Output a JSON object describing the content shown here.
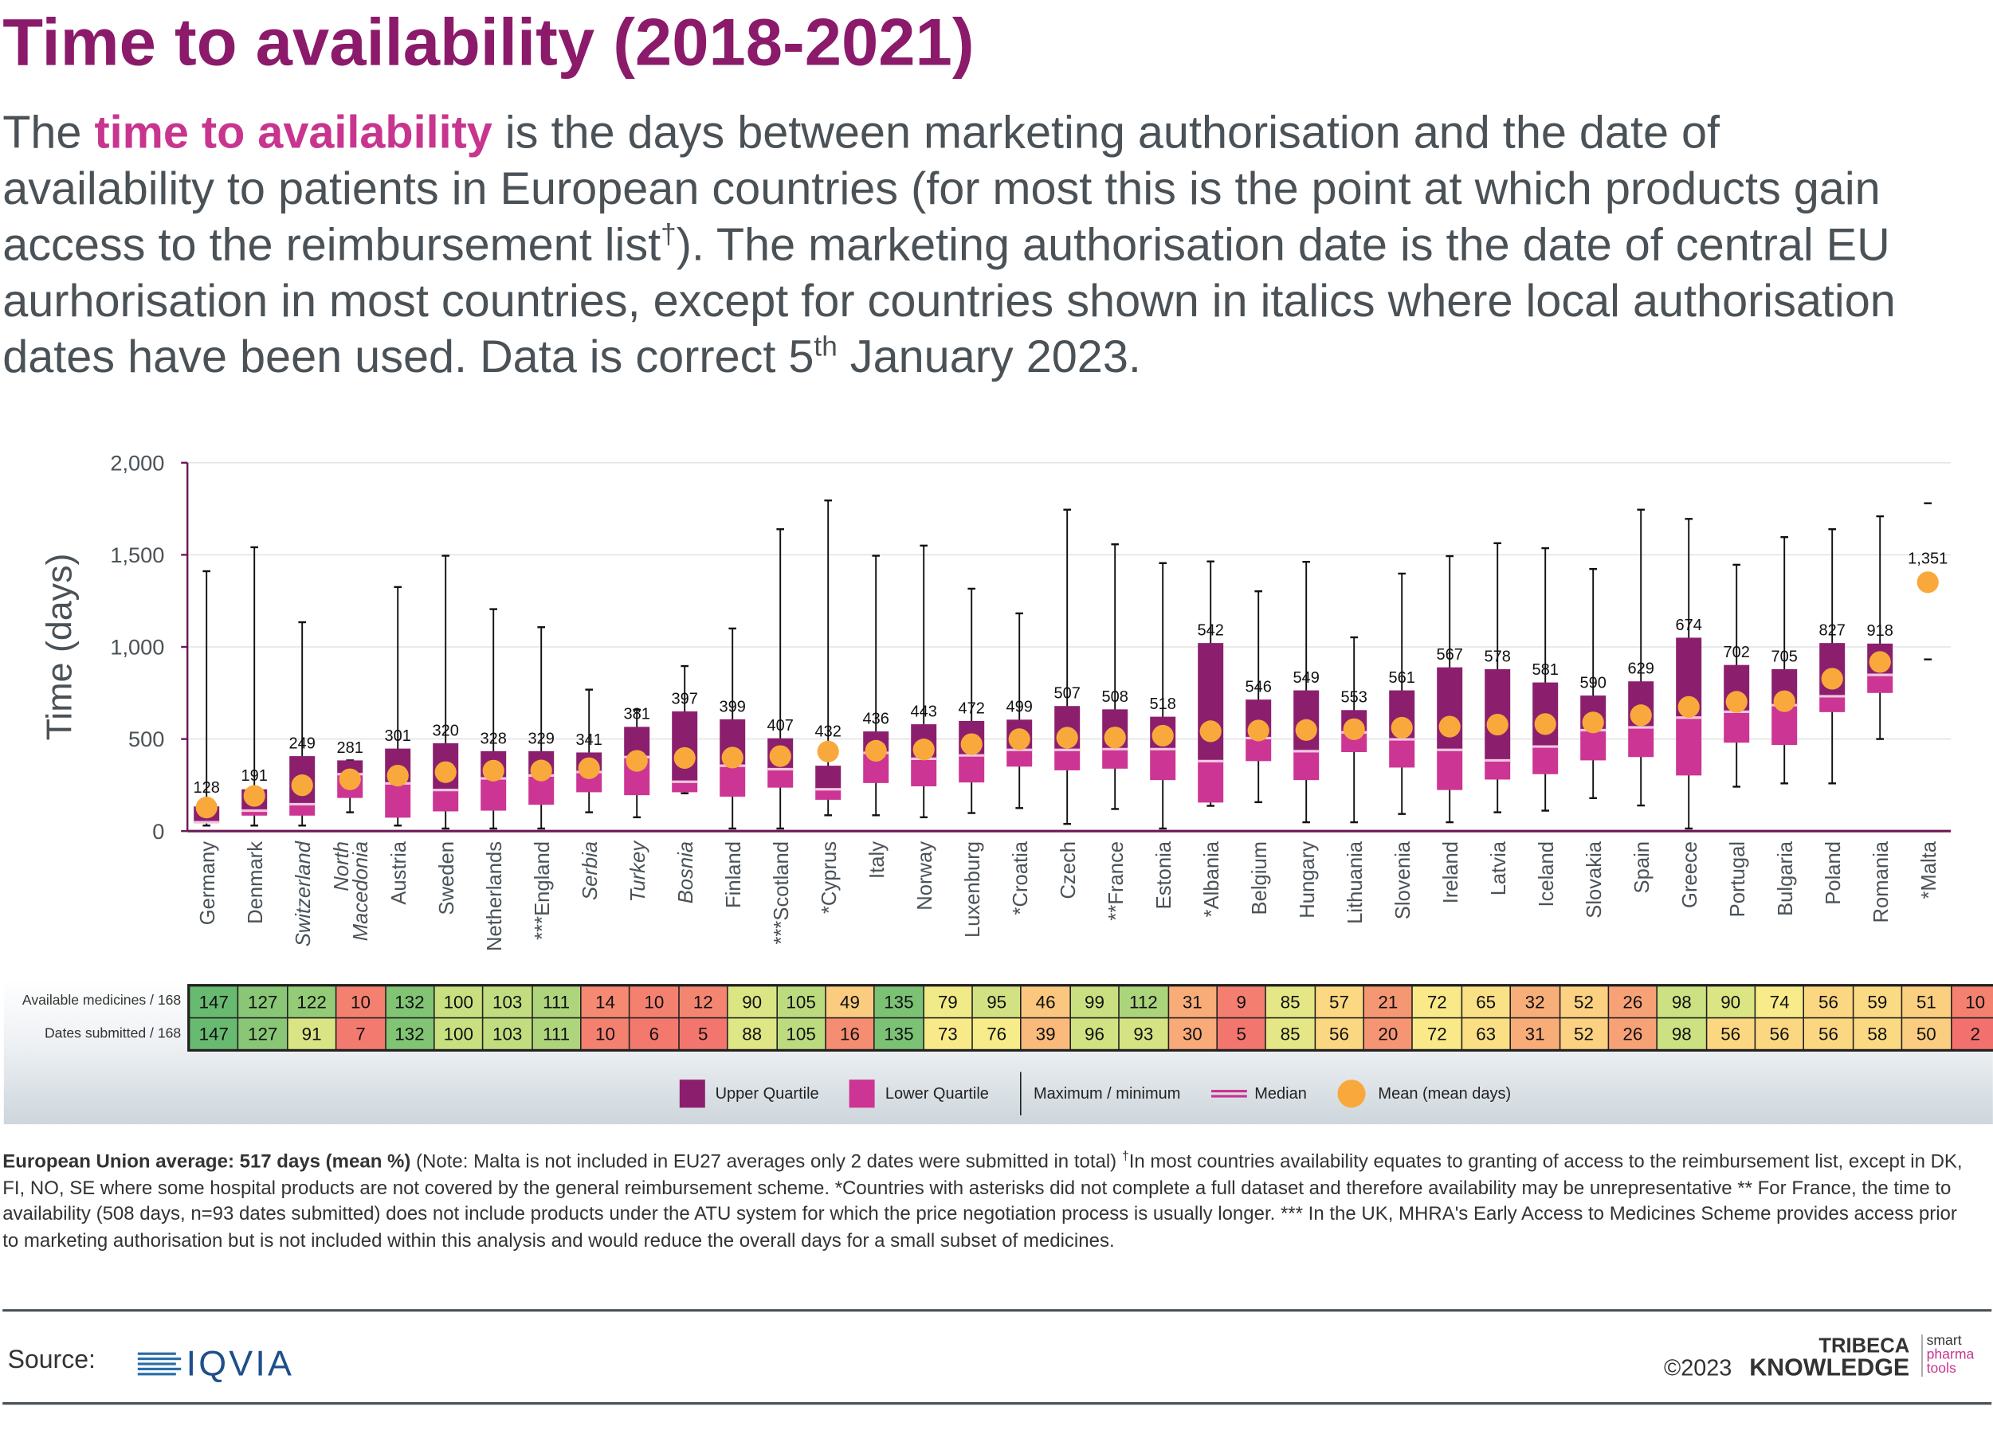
{
  "title": "Time to availability (2018-2021)",
  "intro": {
    "part1": "The ",
    "highlight": "time to availability",
    "part2": " is the days between marketing authorisation and the date of availability to patients in European countries (for most this is the point at which products gain access to the reimbursement list",
    "dagger": "†",
    "part3": "). The marketing authorisation date is the date of central EU aurhorisation in most countries, except for countries shown in italics where local authorisation dates have been used. Data is correct 5",
    "sup_th": "th",
    "part4": " January 2023."
  },
  "chart_data": {
    "type": "boxplot",
    "ylabel": "Time (days)",
    "ylim": [
      0,
      2000
    ],
    "yticks": [
      0,
      500,
      1000,
      1500,
      2000
    ],
    "ytick_labels": [
      "0",
      "500",
      "1,000",
      "1,500",
      "2,000"
    ],
    "grid": true,
    "colors": {
      "upper_quartile": "#8b1f6e",
      "lower_quartile": "#cc3593",
      "median": "#f3c6e0",
      "mean": "#f9a93b",
      "whisker": "#111111",
      "axis": "#6b1a55"
    },
    "countries": [
      {
        "name": "Germany",
        "italic": false,
        "mean": 128,
        "mean_label": "128",
        "min": 30,
        "q1": 45,
        "median": 48,
        "q3": 134,
        "max": 1411
      },
      {
        "name": "Denmark",
        "italic": false,
        "mean": 191,
        "mean_label": "191",
        "min": 30,
        "q1": 84,
        "median": 111,
        "q3": 227,
        "max": 1541
      },
      {
        "name": "Switzerland",
        "italic": true,
        "mean": 249,
        "mean_label": "249",
        "min": 30,
        "q1": 84,
        "median": 146,
        "q3": 407,
        "max": 1134
      },
      {
        "name": "North\nMacedonia",
        "italic": true,
        "mean": 281,
        "mean_label": "281",
        "min": 102,
        "q1": 180,
        "median": 309,
        "q3": 384,
        "max": 384
      },
      {
        "name": "Austria",
        "italic": false,
        "mean": 301,
        "mean_label": "301",
        "min": 30,
        "q1": 73,
        "median": 259,
        "q3": 448,
        "max": 1325
      },
      {
        "name": "Sweden",
        "italic": false,
        "mean": 320,
        "mean_label": "320",
        "min": 14,
        "q1": 107,
        "median": 223,
        "q3": 477,
        "max": 1495
      },
      {
        "name": "Netherlands",
        "italic": false,
        "mean": 328,
        "mean_label": "328",
        "min": 14,
        "q1": 111,
        "median": 286,
        "q3": 434,
        "max": 1205
      },
      {
        "name": "***England",
        "italic": false,
        "mean": 329,
        "mean_label": "329",
        "min": 14,
        "q1": 143,
        "median": 302,
        "q3": 434,
        "max": 1107
      },
      {
        "name": "Serbia",
        "italic": true,
        "mean": 341,
        "mean_label": "341",
        "min": 102,
        "q1": 211,
        "median": 321,
        "q3": 427,
        "max": 768
      },
      {
        "name": "Turkey",
        "italic": true,
        "mean": 381,
        "mean_label": "381",
        "min": 75,
        "q1": 195,
        "median": 402,
        "q3": 566,
        "max": 659
      },
      {
        "name": "Bosnia",
        "italic": true,
        "mean": 397,
        "mean_label": "397",
        "min": 205,
        "q1": 211,
        "median": 268,
        "q3": 650,
        "max": 896
      },
      {
        "name": "Finland",
        "italic": false,
        "mean": 399,
        "mean_label": "399",
        "min": 14,
        "q1": 187,
        "median": 355,
        "q3": 607,
        "max": 1100
      },
      {
        "name": "***Scotland",
        "italic": false,
        "mean": 407,
        "mean_label": "407",
        "min": 14,
        "q1": 236,
        "median": 336,
        "q3": 504,
        "max": 1639
      },
      {
        "name": "*Cyprus",
        "italic": false,
        "mean": 432,
        "mean_label": "432",
        "min": 86,
        "q1": 170,
        "median": 227,
        "q3": 355,
        "max": 1795
      },
      {
        "name": "Italy",
        "italic": false,
        "mean": 436,
        "mean_label": "436",
        "min": 86,
        "q1": 261,
        "median": 425,
        "q3": 541,
        "max": 1495
      },
      {
        "name": "Norway",
        "italic": false,
        "mean": 443,
        "mean_label": "443",
        "min": 75,
        "q1": 243,
        "median": 393,
        "q3": 580,
        "max": 1550
      },
      {
        "name": "Luxenburg",
        "italic": false,
        "mean": 472,
        "mean_label": "472",
        "min": 98,
        "q1": 264,
        "median": 411,
        "q3": 598,
        "max": 1316
      },
      {
        "name": "*Croatia",
        "italic": false,
        "mean": 499,
        "mean_label": "499",
        "min": 125,
        "q1": 350,
        "median": 441,
        "q3": 605,
        "max": 1182
      },
      {
        "name": "Czech",
        "italic": false,
        "mean": 507,
        "mean_label": "507",
        "min": 39,
        "q1": 330,
        "median": 441,
        "q3": 679,
        "max": 1745
      },
      {
        "name": "**France",
        "italic": false,
        "mean": 508,
        "mean_label": "508",
        "min": 120,
        "q1": 339,
        "median": 445,
        "q3": 661,
        "max": 1557
      },
      {
        "name": "Estonia",
        "italic": false,
        "mean": 518,
        "mean_label": "518",
        "min": 14,
        "q1": 277,
        "median": 445,
        "q3": 621,
        "max": 1455
      },
      {
        "name": "*Albania",
        "italic": false,
        "mean": 542,
        "mean_label": "542",
        "min": 137,
        "q1": 155,
        "median": 380,
        "q3": 1021,
        "max": 1464
      },
      {
        "name": "Belgium",
        "italic": false,
        "mean": 546,
        "mean_label": "546",
        "min": 157,
        "q1": 380,
        "median": 505,
        "q3": 714,
        "max": 1302
      },
      {
        "name": "Hungary",
        "italic": false,
        "mean": 549,
        "mean_label": "549",
        "min": 48,
        "q1": 277,
        "median": 434,
        "q3": 764,
        "max": 1462
      },
      {
        "name": "Lithuania",
        "italic": false,
        "mean": 553,
        "mean_label": "553",
        "min": 48,
        "q1": 429,
        "median": 536,
        "q3": 657,
        "max": 1052
      },
      {
        "name": "Slovenia",
        "italic": false,
        "mean": 561,
        "mean_label": "561",
        "min": 93,
        "q1": 345,
        "median": 498,
        "q3": 764,
        "max": 1398
      },
      {
        "name": "Ireland",
        "italic": false,
        "mean": 567,
        "mean_label": "567",
        "min": 48,
        "q1": 223,
        "median": 441,
        "q3": 889,
        "max": 1493
      },
      {
        "name": "Latvia",
        "italic": false,
        "mean": 578,
        "mean_label": "578",
        "min": 102,
        "q1": 280,
        "median": 384,
        "q3": 879,
        "max": 1563
      },
      {
        "name": "Iceland",
        "italic": false,
        "mean": 581,
        "mean_label": "581",
        "min": 111,
        "q1": 309,
        "median": 459,
        "q3": 807,
        "max": 1536
      },
      {
        "name": "Slovakia",
        "italic": false,
        "mean": 590,
        "mean_label": "590",
        "min": 179,
        "q1": 384,
        "median": 548,
        "q3": 736,
        "max": 1423
      },
      {
        "name": "Spain",
        "italic": false,
        "mean": 629,
        "mean_label": "629",
        "min": 139,
        "q1": 402,
        "median": 563,
        "q3": 813,
        "max": 1745
      },
      {
        "name": "Greece",
        "italic": false,
        "mean": 674,
        "mean_label": "674",
        "min": 14,
        "q1": 302,
        "median": 616,
        "q3": 1050,
        "max": 1695
      },
      {
        "name": "Portugal",
        "italic": false,
        "mean": 702,
        "mean_label": "702",
        "min": 241,
        "q1": 480,
        "median": 648,
        "q3": 902,
        "max": 1446
      },
      {
        "name": "Bulgaria",
        "italic": false,
        "mean": 705,
        "mean_label": "705",
        "min": 259,
        "q1": 468,
        "median": 684,
        "q3": 879,
        "max": 1596
      },
      {
        "name": "Poland",
        "italic": false,
        "mean": 827,
        "mean_label": "827",
        "min": 259,
        "q1": 646,
        "median": 732,
        "q3": 1021,
        "max": 1639
      },
      {
        "name": "Romania",
        "italic": false,
        "mean": 918,
        "mean_label": "918",
        "min": 500,
        "q1": 750,
        "median": 848,
        "q3": 1018,
        "max": 1709
      },
      {
        "name": "*Malta",
        "italic": false,
        "mean": 1351,
        "mean_label": "1,351",
        "min": 932,
        "q1": null,
        "median": null,
        "q3": null,
        "max": 1780
      }
    ]
  },
  "table": {
    "rows": [
      {
        "label": "Available medicines / 168",
        "values": [
          147,
          127,
          122,
          10,
          132,
          100,
          103,
          111,
          14,
          10,
          12,
          90,
          105,
          49,
          135,
          79,
          95,
          46,
          99,
          112,
          31,
          9,
          85,
          57,
          21,
          72,
          65,
          32,
          52,
          26,
          98,
          90,
          74,
          56,
          59,
          51,
          10
        ]
      },
      {
        "label": "Dates submitted / 168",
        "values": [
          147,
          127,
          91,
          7,
          132,
          100,
          103,
          111,
          10,
          6,
          5,
          88,
          105,
          16,
          135,
          73,
          76,
          39,
          96,
          93,
          30,
          5,
          85,
          56,
          20,
          72,
          63,
          31,
          52,
          26,
          98,
          56,
          56,
          56,
          58,
          50,
          2
        ]
      }
    ]
  },
  "legend": {
    "upper": "Upper Quartile",
    "lower": "Lower Quartile",
    "maxmin": "Maximum / minimum",
    "median": "Median",
    "mean": "Mean (mean days)"
  },
  "footnote": {
    "bold": "European Union average: 517 days (mean %)",
    "text1": " (Note: Malta is not included in EU27 averages only 2 dates were submitted in total) ",
    "dagger": "†",
    "text2": "In most countries availability equates to granting of access to the reimbursement list, except in DK, FI, NO, SE where some hospital products are not covered by the general reimbursement scheme. *Countries with asterisks did not complete a full dataset and therefore availability may be unrepresentative  ** For France, the time to availability (508 days, n=93 dates submitted) does not include products under the ATU system for which the price negotiation process is usually longer.  *** In the UK, MHRA's Early Access to Medicines Scheme provides access prior to marketing authorisation but is not included within this analysis and would reduce the overall days for a small subset of medicines."
  },
  "footer": {
    "source_label": "Source:",
    "source_logo": "IQVIA",
    "copyright": "©2023",
    "brand_line1": "TRIBECA",
    "brand_line2": "KNOWLEDGE",
    "tag1": "smart",
    "tag2": "pharma",
    "tag3": "tools"
  }
}
